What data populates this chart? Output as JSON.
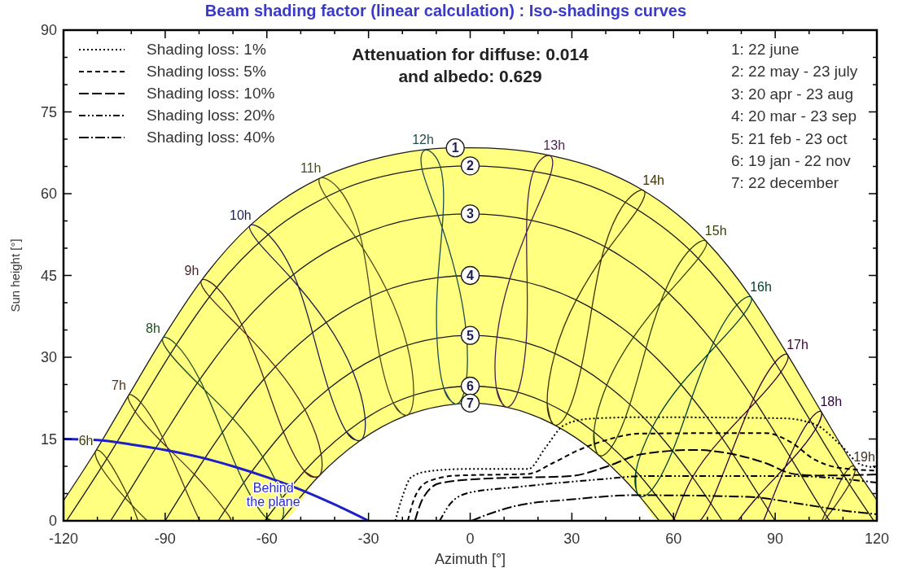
{
  "chart_data": {
    "type": "line",
    "title": "Beam shading factor (linear calculation) : Iso-shadings curves",
    "xlabel": "Azimuth [°]",
    "ylabel": "Sun height [°]",
    "annotations": [
      "Attenuation for diffuse: 0.014\nand albedo: 0.629",
      "1: 22 june\n2: 22 may - 23 july\n3: 20 apr - 23 aug\n4: 20 mar - 23 sep\n5: 21 feb - 23 oct\n6: 19 jan - 22 nov\n7: 22 december",
      {
        "text": "Behind the plane",
        "x": -60,
        "y": 8
      }
    ],
    "xlim": [
      -120,
      120
    ],
    "ylim": [
      0,
      90
    ],
    "xticks": [
      -120,
      {
        "value": -110,
        "label": null
      },
      {
        "value": -100,
        "label": null
      },
      -90,
      {
        "value": -80,
        "label": null
      },
      {
        "value": -70,
        "label": null
      },
      -60,
      {
        "value": -50,
        "label": null
      },
      {
        "value": -40,
        "label": null
      },
      -30,
      {
        "value": -20,
        "label": null
      },
      {
        "value": -10,
        "label": null
      },
      0,
      {
        "value": 10,
        "label": null
      },
      {
        "value": 20,
        "label": null
      },
      30,
      {
        "value": 40,
        "label": null
      },
      {
        "value": 50,
        "label": null
      },
      60,
      {
        "value": 70,
        "label": null
      },
      {
        "value": 80,
        "label": null
      },
      90,
      {
        "value": 100,
        "label": null
      },
      {
        "value": 110,
        "label": null
      },
      120
    ],
    "yticks": [
      0,
      {
        "value": 5,
        "label": null
      },
      {
        "value": 10,
        "label": null
      },
      15,
      {
        "value": 20,
        "label": null
      },
      {
        "value": 25,
        "label": null
      },
      30,
      {
        "value": 35,
        "label": null
      },
      {
        "value": 40,
        "label": null
      },
      45,
      {
        "value": 50,
        "label": null
      },
      {
        "value": 55,
        "label": null
      },
      60,
      {
        "value": 65,
        "label": null
      },
      {
        "value": 70,
        "label": null
      },
      75,
      {
        "value": 80,
        "label": null
      },
      {
        "value": 85,
        "label": null
      },
      90
    ],
    "legend": "top left",
    "marker": "none",
    "series": [
      {
        "name": "1",
        "color": "#1a1a1a",
        "x": [
          -120,
          -110.5,
          -100.8,
          -90.7,
          -79.3,
          -64.9,
          -55.8,
          -44.8,
          -32.5,
          -18.9,
          -4.4,
          0,
          10.3,
          24.5,
          37.6,
          49.4,
          55.8,
          69.6,
          82.9,
          93.7,
          103.6,
          113.4,
          120
        ],
        "values": [
          3.7,
          12.8,
          23.0,
          33.5,
          44.1,
          54.2,
          58.7,
          62.7,
          65.6,
          67.6,
          68.4,
          68.4,
          68.2,
          66.9,
          64.6,
          61.2,
          58.7,
          51.3,
          41.0,
          30.4,
          20.0,
          9.9,
          3.8
        ],
        "lower": [
          0,
          0,
          0,
          0,
          0,
          0,
          0,
          8.1,
          14.7,
          19.3,
          21.4,
          21.6,
          20.9,
          17.7,
          12.2,
          4.9,
          0,
          0,
          0,
          0,
          0,
          0,
          0
        ],
        "upper": [
          3.7,
          12.8,
          23.0,
          33.5,
          44.1,
          54.2,
          58.7,
          62.7,
          65.6,
          67.6,
          68.4,
          68.4,
          68.2,
          66.9,
          64.6,
          61.2,
          58.7,
          51.3,
          41.0,
          30.4,
          20.0,
          9.9,
          3.8
        ]
      },
      {
        "name": "2",
        "color": "#1a1a1a",
        "x": [
          -119.1,
          -107.2,
          -97.2,
          -86.7,
          -74.8,
          -59.6,
          -38.4,
          -14.2,
          0,
          18.7,
          45.8,
          67.3,
          80.7,
          91.7,
          101.9,
          111.9,
          119.1
        ],
        "values": [
          0,
          11.4,
          21.7,
          32.3,
          42.8,
          52.5,
          60.6,
          64.5,
          65.1,
          64.1,
          58.4,
          48.1,
          37.9,
          27.3,
          16.8,
          6.7,
          0
        ]
      },
      {
        "name": "3",
        "color": "#1a1a1a",
        "x": [
          -106.1,
          -101.2,
          -90.8,
          -79.8,
          -67.4,
          -52.1,
          -32.5,
          -8.0,
          0,
          18.1,
          40.8,
          58.5,
          72.5,
          84.2,
          94.9,
          105.3,
          106.1
        ],
        "values": [
          0,
          4.8,
          15.3,
          25.9,
          36.0,
          45.2,
          52.4,
          56.1,
          56.3,
          55.1,
          49.9,
          41.8,
          32.1,
          21.8,
          11.2,
          0.7,
          0
        ]
      },
      {
        "name": "4",
        "color": "#1a1a1a",
        "x": [
          -90,
          -84.1,
          -73.1,
          -60.8,
          -46.5,
          -29.4,
          -9.5,
          0,
          11.7,
          31.3,
          48.2,
          62.2,
          74.3,
          85.2,
          90
        ],
        "values": [
          0,
          5.9,
          16.2,
          26.0,
          34.5,
          41.1,
          44.6,
          45.0,
          44.4,
          40.5,
          33.7,
          25.0,
          15.2,
          4.7,
          0
        ]
      },
      {
        "name": "5",
        "color": "#1a1a1a",
        "x": [
          -74.4,
          -66.8,
          -55.1,
          -41.8,
          -26.7,
          -9.8,
          0,
          7.9,
          25.0,
          40.3,
          53.8,
          65.6,
          74.4
        ],
        "values": [
          0,
          7.0,
          16.3,
          24.2,
          30.2,
          33.5,
          34.0,
          33.7,
          30.7,
          24.9,
          17.2,
          8.0,
          0
        ]
      },
      {
        "name": "6",
        "color": "#1a1a1a",
        "x": [
          -60.6,
          -48.9,
          -36.5,
          -22.7,
          -7.8,
          0,
          7.7,
          22.7,
          36.5,
          48.9,
          60.6
        ],
        "values": [
          0,
          9.1,
          16.3,
          21.6,
          24.3,
          24.7,
          24.4,
          21.6,
          16.3,
          9.1,
          0
        ]
      },
      {
        "name": "7",
        "color": "#1a1a1a",
        "x": [
          -55.8,
          -44.8,
          -32.5,
          -18.9,
          -4.4,
          0,
          10.3,
          24.5,
          37.6,
          49.4,
          55.8
        ],
        "values": [
          0,
          8.1,
          14.7,
          19.3,
          21.4,
          21.6,
          20.9,
          17.7,
          12.2,
          4.9,
          0
        ]
      },
      {
        "name": "6h",
        "color": "#3d3d00",
        "x": [
          -98.0,
          -101.2,
          -107.2,
          -110.5,
          -108.8,
          -101.8,
          -95.3
        ],
        "values": [
          0,
          4.8,
          11.4,
          12.8,
          9.7,
          4.2,
          0
        ]
      },
      {
        "name": "7h",
        "color": "#4d3319",
        "x": [
          -79.8,
          -84.1,
          -90.8,
          -97.2,
          -100.8,
          -98.8,
          -91.4,
          -81.4,
          -72.3,
          -70.6
        ],
        "values": [
          0,
          5.9,
          15.3,
          21.7,
          23.0,
          20.0,
          14.7,
          8.5,
          1.9,
          0
        ]
      },
      {
        "name": "8h",
        "color": "#1f4d1f",
        "x": [
          -55.9,
          -60.1,
          -66.8,
          -73.1,
          -79.8,
          -86.7,
          -90.7,
          -88.5,
          -80.5,
          -70.1,
          -61.2,
          -55.6,
          -55.9,
          -60.1
        ],
        "values": [
          0,
          0.5,
          7.0,
          16.2,
          25.9,
          32.3,
          33.5,
          30.6,
          25.3,
          18.8,
          11.7,
          4.2,
          0,
          0.5
        ]
      },
      {
        "name": "9h",
        "color": "#4d1f1f",
        "x": [
          -44.8,
          -48.9,
          -55.1,
          -60.8,
          -67.4,
          -74.8,
          -79.3,
          -76.9,
          -68.1,
          -57.5,
          -48.8,
          -44.0,
          -44.8,
          -48.9
        ],
        "values": [
          8.1,
          9.1,
          16.3,
          26.0,
          36.0,
          42.8,
          44.1,
          41.1,
          35.5,
          28.3,
          20.4,
          12.3,
          8.1,
          9.1
        ]
      },
      {
        "name": "10h",
        "color": "#1f1f4d",
        "x": [
          -32.5,
          -36.5,
          -41.8,
          -46.5,
          -52.1,
          -59.6,
          -64.9,
          -62.4,
          -53.1,
          -42.5,
          -34.6,
          -31.0,
          -32.5,
          -36.5
        ],
        "values": [
          14.7,
          16.3,
          24.2,
          34.5,
          45.2,
          52.5,
          54.2,
          51.0,
          44.7,
          36.4,
          27.4,
          18.7,
          14.7,
          16.3
        ]
      },
      {
        "name": "11h",
        "color": "#4d4d1f",
        "x": [
          -18.9,
          -22.7,
          -26.7,
          -29.4,
          -32.5,
          -38.4,
          -44.2,
          -42.5,
          -33.8,
          -24.6,
          -18.6,
          -16.7,
          -18.9,
          -22.7
        ],
        "values": [
          19.3,
          21.6,
          30.2,
          41.1,
          52.4,
          60.6,
          62.9,
          59.4,
          52.0,
          42.3,
          32.2,
          23.0,
          19.3,
          21.6
        ]
      },
      {
        "name": "12h",
        "color": "#1f4d4d",
        "x": [
          -4.4,
          -7.8,
          -9.8,
          -9.5,
          -8.0,
          -8.8,
          -13.1,
          -14.2,
          -9.5,
          -4.1,
          -1.1,
          -1.4,
          -4.4,
          -7.8
        ],
        "values": [
          21.4,
          24.3,
          33.5,
          44.6,
          56.1,
          64.9,
          68.0,
          64.5,
          56.0,
          44.9,
          34.0,
          24.7,
          21.4,
          24.3
        ]
      },
      {
        "name": "13h",
        "color": "#4d1f4d",
        "x": [
          10.3,
          7.7,
          7.9,
          11.7,
          18.1,
          23.7,
          23.3,
          18.7,
          16.7,
          16.8,
          16.5,
          14.0,
          10.3,
          7.7
        ],
        "values": [
          20.9,
          24.4,
          33.7,
          44.4,
          55.1,
          63.5,
          67.0,
          64.1,
          55.3,
          43.8,
          32.6,
          23.5,
          20.9,
          24.4
        ]
      },
      {
        "name": "14h",
        "color": "#403000",
        "x": [
          24.5,
          22.7,
          25.0,
          31.3,
          40.8,
          49.4,
          51.2,
          45.8,
          39.7,
          35.9,
          32.8,
          28.6,
          24.5,
          22.7
        ],
        "values": [
          17.7,
          21.6,
          30.7,
          40.5,
          49.9,
          57.1,
          60.6,
          58.4,
          50.3,
          39.0,
          28.2,
          19.7,
          17.7,
          21.6
        ]
      },
      {
        "name": "15h",
        "color": "#304000",
        "x": [
          37.6,
          36.5,
          40.3,
          48.2,
          58.5,
          67.3,
          69.6,
          64.8,
          57.6,
          51.9,
          47.1,
          41.8,
          37.6,
          36.5
        ],
        "values": [
          12.2,
          16.3,
          24.9,
          33.7,
          41.8,
          48.1,
          51.3,
          49.7,
          42.3,
          31.7,
          21.3,
          13.6,
          12.2,
          16.3
        ]
      },
      {
        "name": "16h",
        "color": "#004030",
        "x": [
          49.4,
          48.9,
          53.8,
          62.2,
          72.5,
          80.7,
          82.9,
          78.7,
          71.8,
          65.4,
          59.7,
          53.6,
          49.4,
          48.9
        ],
        "values": [
          4.9,
          9.1,
          17.2,
          25.0,
          32.1,
          37.9,
          41.0,
          39.6,
          32.7,
          22.6,
          12.8,
          5.7,
          4.9,
          9.1
        ]
      },
      {
        "name": "17h",
        "color": "#400030",
        "x": [
          60.0,
          65.6,
          74.3,
          84.2,
          91.7,
          93.7,
          90.0,
          83.6,
          77.1,
          71.0,
          67.8
        ],
        "values": [
          0,
          8.0,
          15.2,
          21.8,
          27.3,
          30.4,
          29.1,
          22.4,
          12.6,
          3.2,
          0
        ]
      },
      {
        "name": "18h",
        "color": "#300040",
        "x": [
          79.0,
          85.2,
          94.9,
          101.9,
          103.6,
          100.2,
          94.3,
          87.9,
          86.5
        ],
        "values": [
          0,
          4.7,
          11.2,
          16.8,
          20.0,
          18.5,
          11.8,
          2.1,
          0
        ]
      },
      {
        "name": "19h",
        "color": "#403020",
        "x": [
          104.2,
          105.3,
          111.9,
          113.4,
          110.2,
          104.7,
          103.9
        ],
        "values": [
          0,
          0.7,
          6.7,
          9.9,
          8.3,
          1.3,
          0
        ]
      },
      {
        "name": "Shading loss: 1%",
        "color": "#000000",
        "line_style": "dotted",
        "x": [
          -22.1,
          -20.0,
          -17.4,
          -12.1,
          -1.7,
          17.1,
          22.3,
          27.6,
          34.9,
          50.5,
          92.3,
          101.7,
          109.0,
          115.3,
          120
        ],
        "values": [
          0,
          4.4,
          8.0,
          9.1,
          9.5,
          9.5,
          13.5,
          17.5,
          18.7,
          19.0,
          18.8,
          17.7,
          14.1,
          10.3,
          9.8
        ]
      },
      {
        "name": "Shading loss: 5%",
        "color": "#000000",
        "line_style": "dashed",
        "x": [
          -18.4,
          -16.3,
          -12.1,
          -3.8,
          17.1,
          24.4,
          31.7,
          40.1,
          50.5,
          87.1,
          94.4,
          101.7,
          109.0,
          120
        ],
        "values": [
          0,
          4.4,
          7.3,
          8.3,
          8.6,
          10.6,
          12.9,
          14.8,
          16.0,
          16.1,
          14.5,
          11.2,
          9.7,
          9.2
        ]
      },
      {
        "name": "Shading loss: 10%",
        "color": "#000000",
        "line_style": "longdash",
        "x": [
          -16.3,
          -14.2,
          -9.0,
          3.5,
          29.6,
          40.1,
          50.5,
          66.2,
          77.7,
          87.1,
          95.4,
          102.7,
          120
        ],
        "values": [
          0,
          3.8,
          6.9,
          7.7,
          8.2,
          9.9,
          12.2,
          13.0,
          12.2,
          10.6,
          8.6,
          8.3,
          8.5
        ]
      },
      {
        "name": "Shading loss: 20%",
        "color": "#000000",
        "line_style": "dashdotdot",
        "x": [
          -9.0,
          -5.9,
          -0.6,
          14.0,
          40.1,
          50.5,
          95,
          120
        ],
        "values": [
          0,
          3.1,
          5.1,
          6.2,
          7.7,
          8.2,
          8.2,
          7.0
        ]
      },
      {
        "name": "Shading loss: 40%",
        "color": "#000000",
        "line_style": "dashdot",
        "x": [
          0.4,
          6.7,
          14.0,
          29.6,
          48.4,
          81.9,
          97.5,
          111.1,
          120
        ],
        "values": [
          0,
          1.5,
          2.8,
          3.9,
          4.7,
          4.4,
          3.1,
          1.8,
          1.2
        ]
      },
      {
        "color": "#1f1fc8",
        "x": [
          -120,
          -110,
          -100,
          -90,
          -80,
          -70,
          -60,
          -50,
          -40,
          -30
        ],
        "values": [
          15,
          14.8,
          14,
          13,
          11.7,
          10,
          8,
          5.7,
          3,
          0
        ]
      }
    ]
  }
}
